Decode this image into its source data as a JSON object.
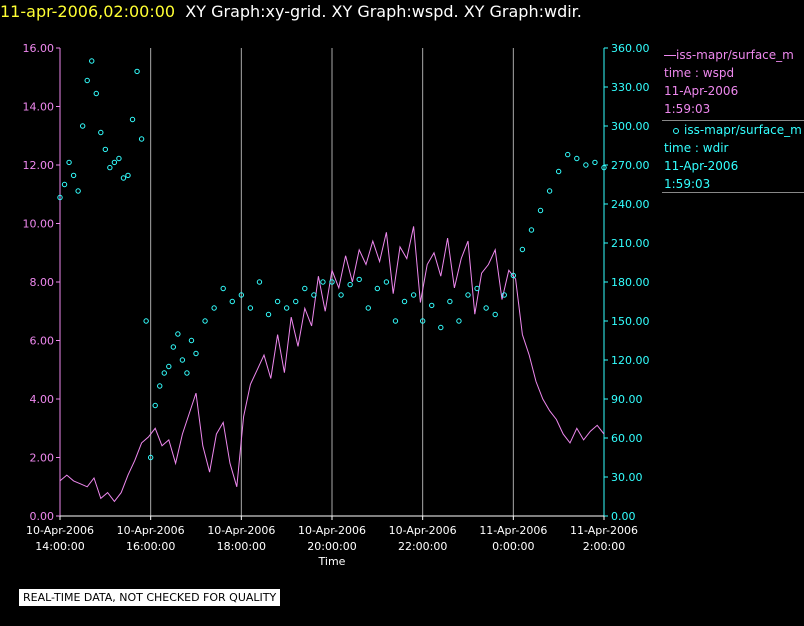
{
  "header": {
    "date_time": "11-apr-2006,02:00:00",
    "graphs": "XY Graph:xy-grid.  XY Graph:wspd.  XY Graph:wdir."
  },
  "disclaimer": "REAL-TIME DATA, NOT CHECKED FOR QUALITY",
  "legend": {
    "wspd": {
      "series": "iss-mapr/surface_m",
      "var": "time : wspd",
      "date": "11-Apr-2006",
      "time": "1:59:03",
      "color": "#ee88ee"
    },
    "wdir": {
      "series": "iss-mapr/surface_m",
      "var": "time : wdir",
      "date": "11-Apr-2006",
      "time": "1:59:03",
      "color": "#33ffff"
    }
  },
  "chart_data": {
    "type": "line",
    "xlabel": "Time",
    "x_ticks": [
      {
        "date": "10-Apr-2006",
        "time": "14:00:00",
        "h": 0
      },
      {
        "date": "10-Apr-2006",
        "time": "16:00:00",
        "h": 2
      },
      {
        "date": "10-Apr-2006",
        "time": "18:00:00",
        "h": 4
      },
      {
        "date": "10-Apr-2006",
        "time": "20:00:00",
        "h": 6
      },
      {
        "date": "10-Apr-2006",
        "time": "22:00:00",
        "h": 8
      },
      {
        "date": "11-Apr-2006",
        "time": "0:00:00",
        "h": 10
      },
      {
        "date": "11-Apr-2006",
        "time": "2:00:00",
        "h": 12
      }
    ],
    "xlim_hours": [
      0,
      12
    ],
    "y_left": {
      "ticks": [
        "0.00",
        "2.00",
        "4.00",
        "6.00",
        "8.00",
        "10.00",
        "12.00",
        "14.00",
        "16.00"
      ],
      "lim": [
        0,
        16
      ],
      "color": "#ee88ee"
    },
    "y_right": {
      "ticks": [
        "0.00",
        "30.00",
        "60.00",
        "90.00",
        "120.00",
        "150.00",
        "180.00",
        "210.00",
        "240.00",
        "270.00",
        "300.00",
        "330.00",
        "360.00"
      ],
      "lim": [
        0,
        360
      ],
      "color": "#33ffff"
    },
    "grid": "vertical",
    "series": [
      {
        "name": "wspd",
        "axis": "left",
        "style": "line",
        "color": "#ee88ee",
        "x_hours": [
          0,
          0.15,
          0.3,
          0.45,
          0.6,
          0.75,
          0.9,
          1.05,
          1.2,
          1.35,
          1.5,
          1.65,
          1.8,
          1.95,
          2.1,
          2.25,
          2.4,
          2.55,
          2.7,
          2.85,
          3.0,
          3.15,
          3.3,
          3.45,
          3.6,
          3.75,
          3.9,
          4.05,
          4.2,
          4.35,
          4.5,
          4.65,
          4.8,
          4.95,
          5.1,
          5.25,
          5.4,
          5.55,
          5.7,
          5.85,
          6.0,
          6.15,
          6.3,
          6.45,
          6.6,
          6.75,
          6.9,
          7.05,
          7.2,
          7.35,
          7.5,
          7.65,
          7.8,
          7.95,
          8.1,
          8.25,
          8.4,
          8.55,
          8.7,
          8.85,
          9.0,
          9.15,
          9.3,
          9.45,
          9.6,
          9.75,
          9.9,
          10.05,
          10.2,
          10.35,
          10.5,
          10.65,
          10.8,
          10.95,
          11.1,
          11.25,
          11.4,
          11.55,
          11.7,
          11.85,
          12.0
        ],
        "values": [
          1.2,
          1.4,
          1.2,
          1.1,
          1.0,
          1.3,
          0.6,
          0.8,
          0.5,
          0.8,
          1.4,
          1.9,
          2.5,
          2.7,
          3.0,
          2.4,
          2.6,
          1.8,
          2.8,
          3.5,
          4.2,
          2.4,
          1.5,
          2.8,
          3.2,
          1.8,
          1.0,
          3.4,
          4.5,
          5.0,
          5.5,
          4.7,
          6.2,
          4.9,
          6.8,
          5.8,
          7.1,
          6.5,
          8.2,
          7.0,
          8.4,
          7.8,
          8.9,
          8.0,
          9.1,
          8.6,
          9.4,
          8.7,
          9.7,
          7.6,
          9.2,
          8.8,
          9.9,
          7.3,
          8.6,
          9.0,
          8.2,
          9.5,
          7.8,
          8.8,
          9.4,
          6.9,
          8.3,
          8.6,
          9.1,
          7.4,
          8.4,
          8.1,
          6.2,
          5.5,
          4.6,
          4.0,
          3.6,
          3.3,
          2.8,
          2.5,
          3.0,
          2.6,
          2.9,
          3.1,
          2.8
        ]
      },
      {
        "name": "wdir",
        "axis": "right",
        "style": "markers",
        "color": "#33ffff",
        "x_hours": [
          0,
          0.1,
          0.2,
          0.3,
          0.4,
          0.5,
          0.6,
          0.7,
          0.8,
          0.9,
          1.0,
          1.1,
          1.2,
          1.3,
          1.4,
          1.5,
          1.6,
          1.7,
          1.8,
          1.9,
          2.0,
          2.1,
          2.2,
          2.3,
          2.4,
          2.5,
          2.6,
          2.7,
          2.8,
          2.9,
          3.0,
          3.2,
          3.4,
          3.6,
          3.8,
          4.0,
          4.2,
          4.4,
          4.6,
          4.8,
          5.0,
          5.2,
          5.4,
          5.6,
          5.8,
          6.0,
          6.2,
          6.4,
          6.6,
          6.8,
          7.0,
          7.2,
          7.4,
          7.6,
          7.8,
          8.0,
          8.2,
          8.4,
          8.6,
          8.8,
          9.0,
          9.2,
          9.4,
          9.6,
          9.8,
          10.0,
          10.2,
          10.4,
          10.6,
          10.8,
          11.0,
          11.2,
          11.4,
          11.6,
          11.8,
          12.0
        ],
        "values": [
          245,
          255,
          272,
          262,
          250,
          300,
          335,
          350,
          325,
          295,
          282,
          268,
          272,
          275,
          260,
          262,
          305,
          342,
          290,
          150,
          45,
          85,
          100,
          110,
          115,
          130,
          140,
          120,
          110,
          135,
          125,
          150,
          160,
          175,
          165,
          170,
          160,
          180,
          155,
          165,
          160,
          165,
          175,
          170,
          180,
          180,
          170,
          178,
          182,
          160,
          175,
          180,
          150,
          165,
          170,
          150,
          162,
          145,
          165,
          150,
          170,
          175,
          160,
          155,
          170,
          185,
          205,
          220,
          235,
          250,
          265,
          278,
          275,
          270,
          272,
          268
        ]
      }
    ]
  }
}
